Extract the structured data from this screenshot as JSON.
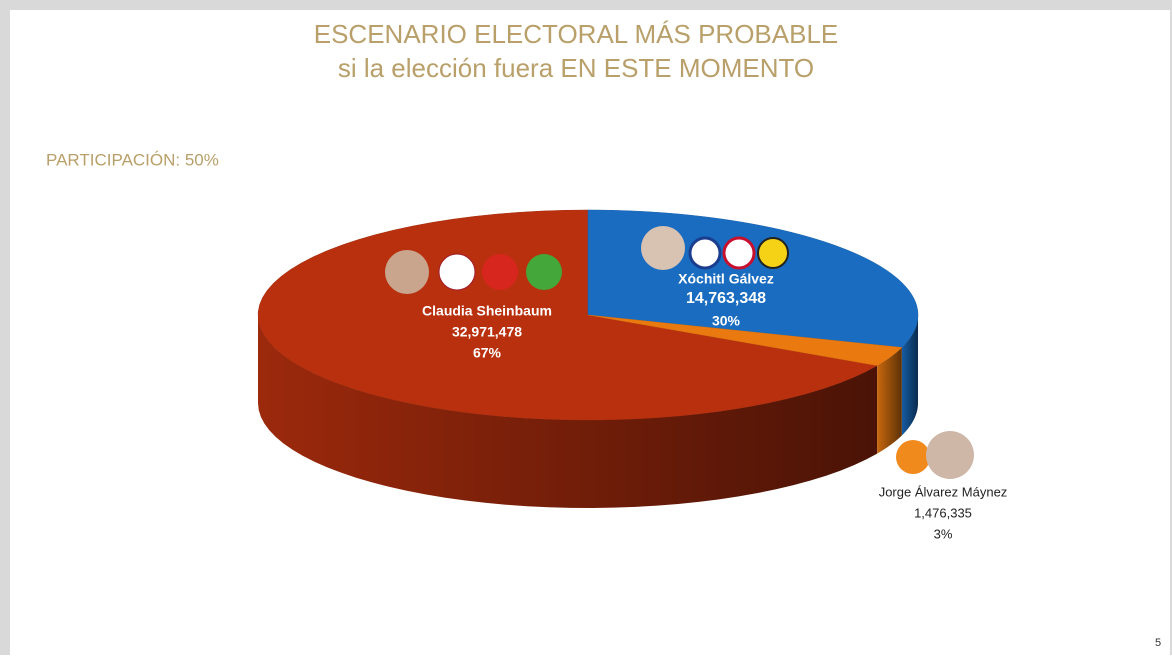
{
  "chart_data": {
    "type": "pie3d",
    "title": "ESCENARIO ELECTORAL MÁS PROBABLE",
    "subtitle": "si la elección fuera EN ESTE MOMENTO",
    "annotation": "PARTICIPACIÓN: 50%",
    "page_number": "5",
    "categories": [
      "Claudia Sheinbaum",
      "Xóchitl Gálvez",
      "Jorge Álvarez Máynez"
    ],
    "values": [
      67,
      30,
      3
    ],
    "value_labels": [
      "67%",
      "30%",
      "3%"
    ],
    "votes": [
      {
        "value": 32971478,
        "label": "32,971,478"
      },
      {
        "value": 14763348,
        "label": "14,763,348"
      },
      {
        "value": 1476335,
        "label": "1,476,335"
      }
    ],
    "colors": [
      "#b8300e",
      "#1a6cc0",
      "#ea7a10"
    ]
  }
}
